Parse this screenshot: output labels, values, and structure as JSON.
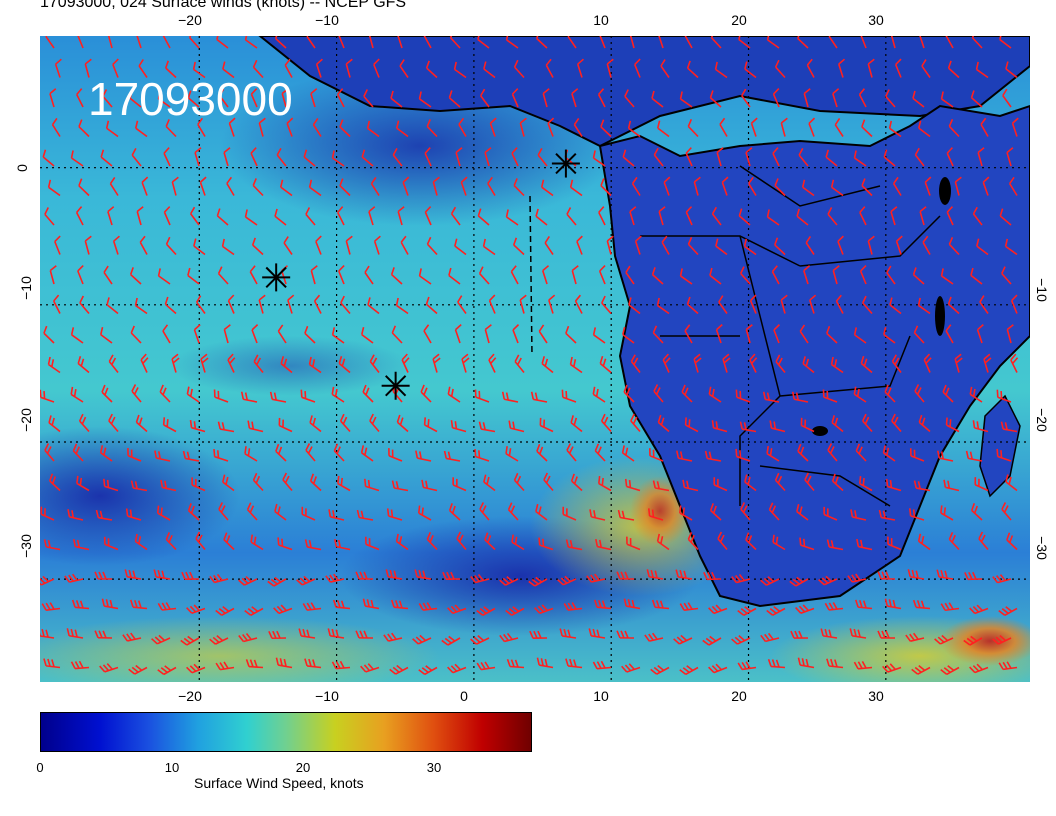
{
  "header": {
    "title": "17093000, 024 Surface winds (knots) -- NCEP GFS",
    "date_stamp": "17093000"
  },
  "map": {
    "lon_ticks": [
      "−20",
      "−10",
      "0",
      "10",
      "20",
      "30"
    ],
    "lat_ticks": [
      "0",
      "−10",
      "−20",
      "−30"
    ],
    "markers": [
      {
        "name": "star-marker-1",
        "lon": 6.7,
        "lat": 0.3
      },
      {
        "name": "star-marker-2",
        "lon": -14.4,
        "lat": -8.0
      },
      {
        "name": "star-marker-3",
        "lon": -5.7,
        "lat": -15.9
      }
    ],
    "colors": {
      "barb": "#ff2020",
      "coast": "#000000",
      "low": "#1a2fbf",
      "mid": "#30c8d0",
      "high": "#e0d020"
    }
  },
  "colorbar": {
    "ticks": [
      "0",
      "10",
      "20",
      "30"
    ],
    "label": "Surface Wind Speed, knots",
    "range": [
      0,
      37
    ]
  }
}
